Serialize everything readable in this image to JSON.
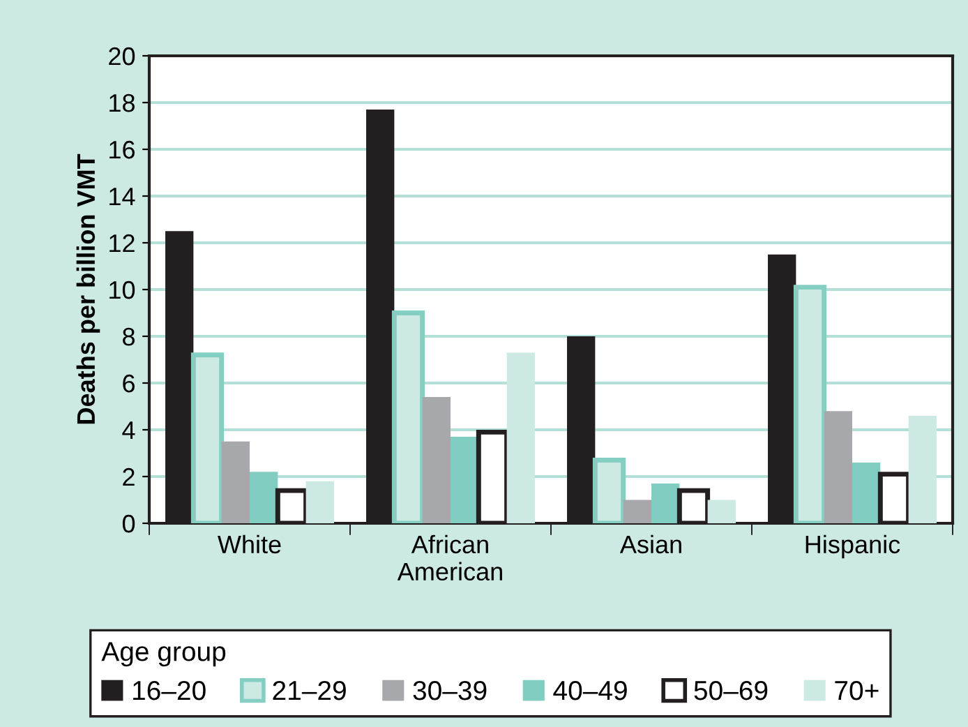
{
  "chart_data": {
    "type": "bar",
    "ylabel": "Deaths per billion VMT",
    "categories": [
      "White",
      "African\nAmerican",
      "Asian",
      "Hispanic"
    ],
    "series": [
      {
        "name": "16–20",
        "color": "#231f20",
        "values": [
          12.5,
          17.7,
          8.0,
          11.5
        ]
      },
      {
        "name": "21–29",
        "color": "#cde9e3",
        "values": [
          7.2,
          9.0,
          2.7,
          10.1
        ]
      },
      {
        "name": "30–39",
        "color": "#a7a8ab",
        "values": [
          3.5,
          5.4,
          1.0,
          4.8
        ]
      },
      {
        "name": "40–49",
        "color": "#82cdc1",
        "values": [
          2.2,
          3.7,
          1.7,
          2.6
        ]
      },
      {
        "name": "50–69",
        "color": "#ffffff",
        "values": [
          1.4,
          3.9,
          1.4,
          2.1
        ]
      },
      {
        "name": "70+",
        "color": "#cde9e3",
        "values": [
          1.8,
          7.3,
          1.0,
          4.6
        ]
      }
    ],
    "ylim": [
      0,
      20
    ],
    "yticks": [
      0,
      2,
      4,
      6,
      8,
      10,
      12,
      14,
      16,
      18,
      20
    ],
    "grid": "y",
    "legend": "bottom",
    "legend_title": "Age group"
  }
}
